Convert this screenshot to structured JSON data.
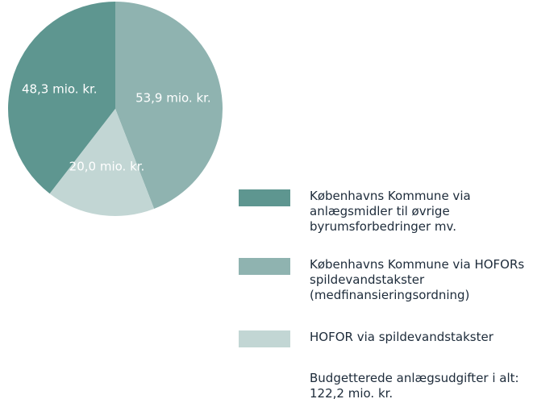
{
  "chart_data": {
    "type": "pie",
    "categories": [
      "Københavns Kommune via anlægsmidler til øvrige byrumsforbedringer mv.",
      "Københavns Kommune via HOFORs spildevandstakster (medfinansieringsordning)",
      "HOFOR via spildevandstakster"
    ],
    "values": [
      48.3,
      53.9,
      20.0
    ],
    "value_labels": [
      "48,3 mio. kr.",
      "53,9 mio. kr.",
      "20,0 mio. kr."
    ],
    "colors": [
      "#5e9690",
      "#8fb3b0",
      "#c2d6d4"
    ],
    "annotation": "Budgetterede anlægsudgifter i alt: 122,2 mio. kr."
  }
}
